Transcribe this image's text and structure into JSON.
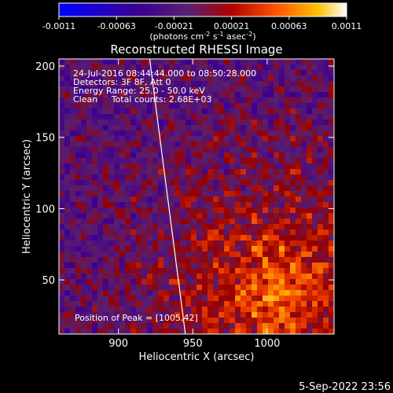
{
  "chart_data": {
    "type": "heatmap",
    "title": "Reconstructed RHESSI Image",
    "xlabel": "Heliocentric X (arcsec)",
    "ylabel": "Heliocentric Y (arcsec)",
    "xlim": [
      860,
      1045
    ],
    "ylim": [
      12,
      205
    ],
    "x_ticks": [
      900,
      950,
      1000
    ],
    "y_ticks": [
      50,
      100,
      150,
      200
    ],
    "colorbar": {
      "min": -0.0011,
      "max": 0.0011,
      "tick_labels": [
        "-0.0011",
        "-0.00063",
        "-0.00021",
        "0.00021",
        "0.00063",
        "0.0011"
      ],
      "unit_label": "(photons cm-2 s-1 asec-2)",
      "colors": [
        "#0000ff",
        "#40008c",
        "#5c1a8a",
        "#b00000",
        "#ff4000",
        "#ffb000",
        "#ffffff"
      ]
    },
    "annotations": [
      "24-Jul-2016 08:44:44.000 to 08:50:28.000",
      "Detectors: 3F 8F, Att 0",
      "Energy Range: 25.0 - 50.0 keV",
      "Clean     Total counts: 2.68E+03"
    ],
    "peak_label": "Position of Peak = [1005,42]",
    "peak": {
      "x": 1005,
      "y": 42
    },
    "limb_line": [
      {
        "x": 921,
        "y": 205
      },
      {
        "x": 945,
        "y": 12
      }
    ],
    "grid": false,
    "legend": "none"
  },
  "footer": {
    "timestamp": "5-Sep-2022 23:56"
  }
}
